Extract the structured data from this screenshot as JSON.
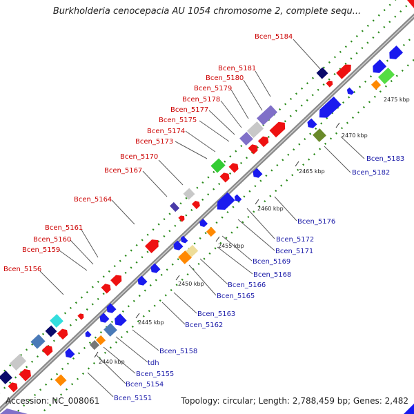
{
  "title": "Burkholderia cenocepacia AU 1054 chromosome 2, complete sequ...",
  "footer": {
    "accession": "Accession: NC_008061",
    "topology": "Topology: circular; Length: 2,788,459 bp; Genes: 2,482"
  },
  "colors": {
    "backbone": "#8a8a8a",
    "dots": "#2a8a1a",
    "label_red": "#cc0000",
    "label_blue": "#1a1aa8",
    "leader": "#5a5a5a"
  },
  "ticks": [
    "2440 kbp",
    "2445 kbp",
    "2450 kbp",
    "2455 kbp",
    "2460 kbp",
    "2465 kbp",
    "2470 kbp",
    "2475 kbp"
  ],
  "labels_forward": [
    "Bcen_5184",
    "Bcen_5181",
    "Bcen_5180",
    "Bcen_5179",
    "Bcen_5178",
    "Bcen_5177",
    "Bcen_5175",
    "Bcen_5174",
    "Bcen_5173",
    "Bcen_5170",
    "Bcen_5167",
    "Bcen_5164",
    "Bcen_5161",
    "Bcen_5160",
    "Bcen_5159",
    "Bcen_5156"
  ],
  "labels_reverse": [
    "Bcen_5183",
    "Bcen_5182",
    "Bcen_5176",
    "Bcen_5172",
    "Bcen_5171",
    "Bcen_5169",
    "Bcen_5168",
    "Bcen_5166",
    "Bcen_5165",
    "Bcen_5163",
    "Bcen_5162",
    "Bcen_5158",
    "tdh",
    "Bcen_5155",
    "Bcen_5154",
    "Bcen_5151"
  ]
}
